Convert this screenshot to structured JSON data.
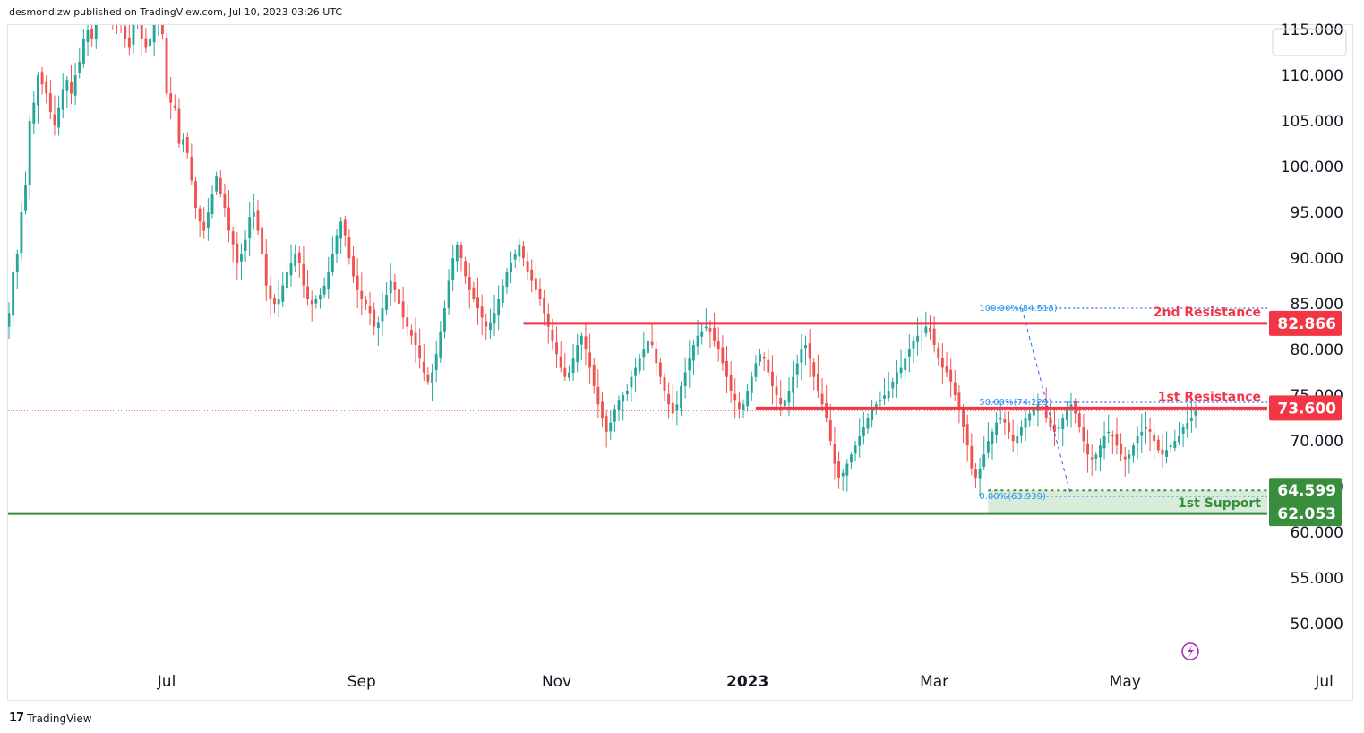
{
  "header": {
    "text": "desmondlzw published on TradingView.com, Jul 10, 2023 03:26 UTC"
  },
  "footer": {
    "logo": "17",
    "brand": "TradingView"
  },
  "colors": {
    "up": "#26a69a",
    "down": "#ef5350",
    "resistance": "#f23645",
    "support": "#388e3c",
    "support_zone": "#c8e6c9",
    "fib": "#2962ff",
    "fib_text": "#2196f3",
    "grid": "#f0f3fa"
  },
  "chart_data": {
    "type": "candlestick",
    "y_ticks": [
      "115.000",
      "110.000",
      "105.000",
      "100.000",
      "95.000",
      "90.000",
      "85.000",
      "80.000",
      "75.000",
      "70.000",
      "65.000",
      "60.000",
      "55.000",
      "50.000"
    ],
    "y_tick_values": [
      115,
      110,
      105,
      100,
      95,
      90,
      85,
      80,
      75,
      70,
      65,
      60,
      55,
      50
    ],
    "ylim": [
      45.5,
      115.5
    ],
    "x_ticks": [
      {
        "label": "Jul",
        "index": 38,
        "bold": false
      },
      {
        "label": "Sep",
        "index": 85,
        "bold": false
      },
      {
        "label": "Nov",
        "index": 132,
        "bold": false
      },
      {
        "label": "2023",
        "index": 178,
        "bold": true
      },
      {
        "label": "Mar",
        "index": 223,
        "bold": false
      },
      {
        "label": "May",
        "index": 269,
        "bold": false
      },
      {
        "label": "Jul",
        "index": 317,
        "bold": false
      }
    ],
    "levels": [
      {
        "label": "2nd Resistance",
        "value": 82.866,
        "tag": "82.866",
        "kind": "resistance",
        "start_index": 124
      },
      {
        "label": "1st Resistance",
        "value": 73.6,
        "tag": "73.600",
        "kind": "resistance",
        "start_index": 180
      },
      {
        "label": "",
        "value": 64.599,
        "tag": "64.599",
        "kind": "support-dotted",
        "start_index": 236
      },
      {
        "label": "1st Support",
        "value": 62.053,
        "tag": "62.053",
        "kind": "support",
        "start_index": 0
      }
    ],
    "fibonacci": [
      {
        "label": "100.00%(84.518)",
        "value": 84.518
      },
      {
        "label": "50.00%(74.229)",
        "value": 74.229
      },
      {
        "label": "0.00%(63.939)",
        "value": 63.939
      }
    ],
    "fib_range_index": [
      236,
      256
    ],
    "last_price": 73.3,
    "closes": [
      84.0,
      88.5,
      90.5,
      95.0,
      98.0,
      105.0,
      107.0,
      110.0,
      109.0,
      108.0,
      106.0,
      104.5,
      106.5,
      108.5,
      109.5,
      108.0,
      110.0,
      111.5,
      114.0,
      115.0,
      114.0,
      116.5,
      118.0,
      119.5,
      118.5,
      117.0,
      116.0,
      115.5,
      114.0,
      113.0,
      115.5,
      116.0,
      114.0,
      113.0,
      114.0,
      116.0,
      117.5,
      114.5,
      108.0,
      107.0,
      106.5,
      102.5,
      103.0,
      101.5,
      98.5,
      95.5,
      94.0,
      93.0,
      95.0,
      97.0,
      99.0,
      97.0,
      95.5,
      93.0,
      91.5,
      89.5,
      90.5,
      92.0,
      94.5,
      95.0,
      93.0,
      90.5,
      87.0,
      85.5,
      85.0,
      85.5,
      87.0,
      88.5,
      89.5,
      90.5,
      89.5,
      87.0,
      85.5,
      85.0,
      85.5,
      86.0,
      87.0,
      88.5,
      90.5,
      92.5,
      94.0,
      92.5,
      90.0,
      88.0,
      86.5,
      85.5,
      85.0,
      84.0,
      82.5,
      83.0,
      84.5,
      86.0,
      87.5,
      86.5,
      85.0,
      83.5,
      82.5,
      81.5,
      80.5,
      79.0,
      77.5,
      76.5,
      77.5,
      79.5,
      82.0,
      84.5,
      87.5,
      90.0,
      91.5,
      90.0,
      88.0,
      86.5,
      85.5,
      84.5,
      83.5,
      82.5,
      83.0,
      84.0,
      85.5,
      87.0,
      88.5,
      89.5,
      90.5,
      91.5,
      90.0,
      88.5,
      87.5,
      86.5,
      85.5,
      84.0,
      82.5,
      81.0,
      79.5,
      78.0,
      77.0,
      77.5,
      79.0,
      80.5,
      81.5,
      80.0,
      78.0,
      76.0,
      74.0,
      72.5,
      71.0,
      72.0,
      73.5,
      74.5,
      75.0,
      75.5,
      77.0,
      78.0,
      79.0,
      80.0,
      81.0,
      80.5,
      78.5,
      77.0,
      75.5,
      74.0,
      73.0,
      74.0,
      76.0,
      77.5,
      79.0,
      80.5,
      81.5,
      82.0,
      82.5,
      82.0,
      81.0,
      80.0,
      78.5,
      77.0,
      75.5,
      74.5,
      73.5,
      74.0,
      75.5,
      77.0,
      78.5,
      79.5,
      79.0,
      77.5,
      76.0,
      75.0,
      74.0,
      74.5,
      75.5,
      77.0,
      78.5,
      80.0,
      80.5,
      79.0,
      77.0,
      75.5,
      74.0,
      72.5,
      70.0,
      67.5,
      66.0,
      66.5,
      67.5,
      68.5,
      69.5,
      70.5,
      71.5,
      72.5,
      73.5,
      74.0,
      74.5,
      75.0,
      75.5,
      76.5,
      77.5,
      78.0,
      79.0,
      80.0,
      81.0,
      81.5,
      82.0,
      82.5,
      82.0,
      80.5,
      79.0,
      78.0,
      77.5,
      76.5,
      75.0,
      73.5,
      71.5,
      69.5,
      67.0,
      66.0,
      67.0,
      68.5,
      70.0,
      71.0,
      72.0,
      72.5,
      72.0,
      71.0,
      70.0,
      70.5,
      71.5,
      72.5,
      73.0,
      73.5,
      74.0,
      73.5,
      72.5,
      71.5,
      71.0,
      71.5,
      72.5,
      73.5,
      74.0,
      73.0,
      71.5,
      70.0,
      68.5,
      68.0,
      68.5,
      69.5,
      70.5,
      71.0,
      70.5,
      69.5,
      68.5,
      68.0,
      68.5,
      69.5,
      70.5,
      71.0,
      71.5,
      71.0,
      70.0,
      69.0,
      68.5,
      69.0,
      69.5,
      70.0,
      70.5,
      71.5,
      72.0,
      72.5,
      73.3
    ]
  }
}
